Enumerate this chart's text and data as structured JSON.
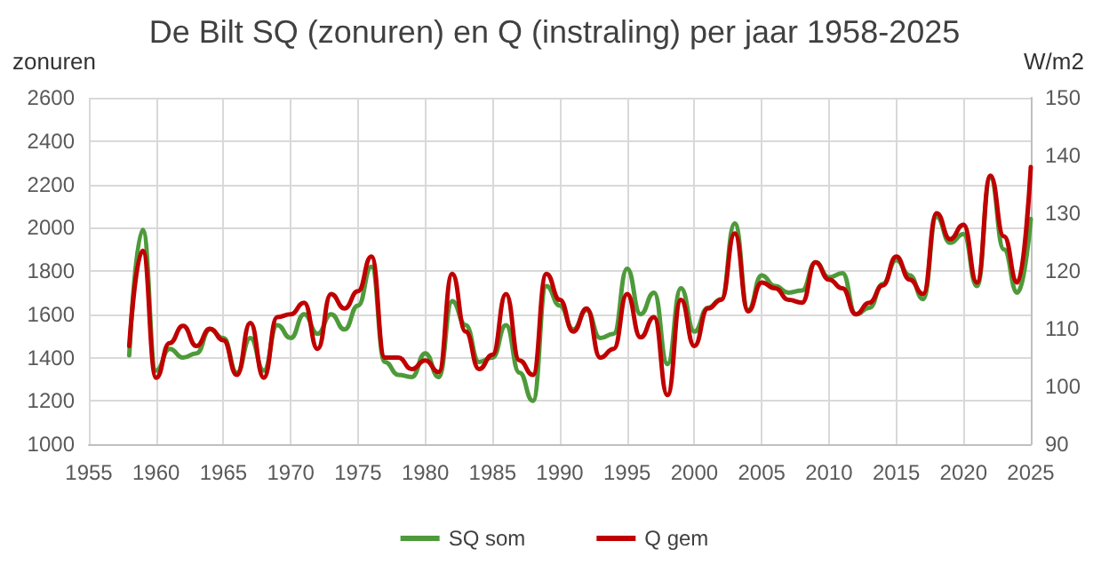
{
  "chart_data": {
    "type": "line",
    "title": "De Bilt SQ (zonuren) en Q (instraling) per jaar 1958-2025",
    "ylabel": "zonuren",
    "y2label": "W/m2",
    "x": [
      1958,
      1959,
      1960,
      1961,
      1962,
      1963,
      1964,
      1965,
      1966,
      1967,
      1968,
      1969,
      1970,
      1971,
      1972,
      1973,
      1974,
      1975,
      1976,
      1977,
      1978,
      1979,
      1980,
      1981,
      1982,
      1983,
      1984,
      1985,
      1986,
      1987,
      1988,
      1989,
      1990,
      1991,
      1992,
      1993,
      1994,
      1995,
      1996,
      1997,
      1998,
      1999,
      2000,
      2001,
      2002,
      2003,
      2004,
      2005,
      2006,
      2007,
      2008,
      2009,
      2010,
      2011,
      2012,
      2013,
      2014,
      2015,
      2016,
      2017,
      2018,
      2019,
      2020,
      2021,
      2022,
      2023,
      2024,
      2025
    ],
    "series": [
      {
        "name": "SQ som",
        "color": "#4e9a3a",
        "values": [
          1410,
          1990,
          1340,
          1440,
          1400,
          1420,
          1530,
          1490,
          1330,
          1490,
          1340,
          1550,
          1490,
          1600,
          1510,
          1600,
          1530,
          1640,
          1820,
          1380,
          1320,
          1310,
          1420,
          1310,
          1660,
          1550,
          1380,
          1400,
          1550,
          1330,
          1200,
          1730,
          1640,
          1530,
          1620,
          1490,
          1510,
          1810,
          1600,
          1700,
          1370,
          1720,
          1520,
          1630,
          1670,
          2020,
          1620,
          1780,
          1730,
          1700,
          1710,
          1840,
          1770,
          1790,
          1600,
          1630,
          1740,
          1850,
          1780,
          1670,
          2050,
          1930,
          1970,
          1730,
          2230,
          1900,
          1700,
          2040
        ]
      },
      {
        "name": "Q gem",
        "color": "#c00000",
        "axis": "y2",
        "values": [
          107,
          123.5,
          101.5,
          107.5,
          110.5,
          107,
          110,
          108,
          102,
          111,
          101.5,
          112,
          112.5,
          114.5,
          106.5,
          116,
          113.5,
          116.5,
          122.5,
          105,
          105,
          103,
          104.5,
          102.5,
          119.5,
          109.5,
          103,
          105.5,
          116,
          104.5,
          102,
          119.5,
          115,
          109.5,
          113.5,
          105,
          106.5,
          116,
          108.5,
          112,
          98.5,
          115,
          107,
          113.5,
          115,
          126.5,
          113,
          118,
          117,
          115,
          114.5,
          121.5,
          118.5,
          117,
          112.5,
          114.5,
          117.5,
          122.5,
          118.5,
          116,
          130,
          125.5,
          128,
          118,
          136.5,
          126,
          118,
          138
        ]
      }
    ],
    "xlim": [
      1955,
      2025
    ],
    "xticks": [
      1955,
      1960,
      1965,
      1970,
      1975,
      1980,
      1985,
      1990,
      1995,
      2000,
      2005,
      2010,
      2015,
      2020,
      2025
    ],
    "ylim": [
      1000,
      2600
    ],
    "yticks": [
      1000,
      1200,
      1400,
      1600,
      1800,
      2000,
      2200,
      2400,
      2600
    ],
    "y2lim": [
      90,
      150
    ],
    "y2ticks": [
      90,
      100,
      110,
      120,
      130,
      140,
      150
    ],
    "grid": true,
    "legend": "bottom",
    "marker": "none",
    "line_style": "solid"
  }
}
